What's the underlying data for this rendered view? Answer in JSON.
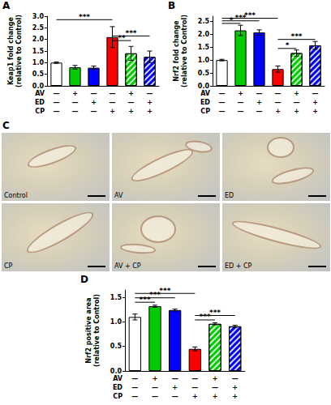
{
  "chart_data": [
    {
      "type": "bar",
      "title": "A",
      "y_label": "Keap1 fold change\n(relative to Control)",
      "categories": [
        null,
        null,
        null,
        null,
        null,
        null
      ],
      "values": [
        1.0,
        0.8,
        0.78,
        2.1,
        1.4,
        1.25
      ],
      "errors": [
        0.03,
        0.08,
        0.07,
        0.45,
        0.3,
        0.25
      ],
      "colors": [
        "#ffffff",
        "#00cc00",
        "#0000ff",
        "#ff0000",
        "#00cc00",
        "#0000ff"
      ],
      "treatments": {
        "AV": [
          "—",
          "+",
          "—",
          "—",
          "+",
          "—"
        ],
        "ED": [
          "—",
          "—",
          "+",
          "—",
          "—",
          "+"
        ],
        "CP": [
          "—",
          "—",
          "—",
          "+",
          "+",
          "+"
        ]
      },
      "significance": [
        {
          "from": 0,
          "to": 3,
          "y": 2.85,
          "label": "***"
        },
        {
          "from": 3,
          "to": 4,
          "y": 1.95,
          "label": "**"
        },
        {
          "from": 3,
          "to": 5,
          "y": 2.15,
          "label": "***"
        }
      ],
      "ylim": [
        0,
        3.0
      ],
      "yticks": [
        {
          "value": 0,
          "label": "0.0"
        },
        {
          "value": 0.5,
          "label": "0.5"
        },
        {
          "value": 1,
          "label": "1.0"
        },
        {
          "value": 1.5,
          "label": "1.5"
        },
        {
          "value": 2,
          "label": "2.0"
        },
        {
          "value": 2.5,
          "label": "2.5"
        },
        {
          "value": 3,
          "label": "3.0"
        }
      ],
      "grid": false,
      "tick_labels": "y"
    },
    {
      "type": "bar",
      "title": "B",
      "y_label": "Nrf2 fold change\n(relative to Control)",
      "categories": [
        null,
        null,
        null,
        null,
        null,
        null
      ],
      "values": [
        1.0,
        2.15,
        2.07,
        0.65,
        1.27,
        1.57
      ],
      "errors": [
        0.03,
        0.2,
        0.1,
        0.12,
        0.12,
        0.15
      ],
      "colors": [
        "#ffffff",
        "#00cc00",
        "#0000ff",
        "#ff0000",
        "#00cc00",
        "#0000ff"
      ],
      "treatments": {
        "AV": [
          "—",
          "+",
          "—",
          "—",
          "+",
          "—"
        ],
        "ED": [
          "—",
          "—",
          "+",
          "—",
          "—",
          "+"
        ],
        "CP": [
          "—",
          "—",
          "—",
          "+",
          "+",
          "+"
        ]
      },
      "significance": [
        {
          "from": 0,
          "to": 1,
          "y": 2.42,
          "label": "*"
        },
        {
          "from": 0,
          "to": 2,
          "y": 2.52,
          "label": "***"
        },
        {
          "from": 0,
          "to": 3,
          "y": 2.62,
          "label": "***"
        },
        {
          "from": 3,
          "to": 4,
          "y": 1.45,
          "label": "*"
        },
        {
          "from": 3,
          "to": 5,
          "y": 1.8,
          "label": "***"
        }
      ],
      "ylim": [
        0,
        2.7
      ],
      "yticks": [
        {
          "value": 0,
          "label": "0.0"
        },
        {
          "value": 0.5,
          "label": "0.5"
        },
        {
          "value": 1,
          "label": "1.0"
        },
        {
          "value": 1.5,
          "label": "1.5"
        },
        {
          "value": 2,
          "label": "2.0"
        },
        {
          "value": 2.5,
          "label": "2.5"
        }
      ],
      "grid": false,
      "tick_labels": "y"
    },
    {
      "type": "bar",
      "title": "D",
      "y_label": "Nrf2 positive area\n(relative to Control)",
      "categories": [
        null,
        null,
        null,
        null,
        null,
        null
      ],
      "values": [
        1.1,
        1.32,
        1.24,
        0.45,
        0.96,
        0.91
      ],
      "errors": [
        0.06,
        0.02,
        0.02,
        0.04,
        0.02,
        0.02
      ],
      "colors": [
        "#ffffff",
        "#00cc00",
        "#0000ff",
        "#ff0000",
        "#00cc00",
        "#0000ff"
      ],
      "treatments": {
        "AV": [
          "—",
          "+",
          "—",
          "—",
          "+",
          "—"
        ],
        "ED": [
          "—",
          "—",
          "+",
          "—",
          "—",
          "+"
        ],
        "CP": [
          "—",
          "—",
          "—",
          "+",
          "+",
          "+"
        ]
      },
      "significance": [
        {
          "from": 0,
          "to": 1,
          "y": 1.4,
          "label": "***"
        },
        {
          "from": 0,
          "to": 2,
          "y": 1.49,
          "label": "***"
        },
        {
          "from": 0,
          "to": 3,
          "y": 1.58,
          "label": "***"
        },
        {
          "from": 3,
          "to": 4,
          "y": 1.04,
          "label": "***"
        },
        {
          "from": 3,
          "to": 5,
          "y": 1.13,
          "label": "***"
        }
      ],
      "ylim": [
        0,
        1.65
      ],
      "yticks": [
        {
          "value": 0,
          "label": "0.0"
        },
        {
          "value": 0.5,
          "label": "0.5"
        },
        {
          "value": 1,
          "label": "1.0"
        },
        {
          "value": 1.5,
          "label": "1.5"
        }
      ],
      "grid": false,
      "tick_labels": "y"
    }
  ],
  "micrographs": {
    "title": "C",
    "labels": [
      "Control",
      "AV",
      "ED",
      "CP",
      "AV + CP",
      "ED + CP"
    ]
  }
}
